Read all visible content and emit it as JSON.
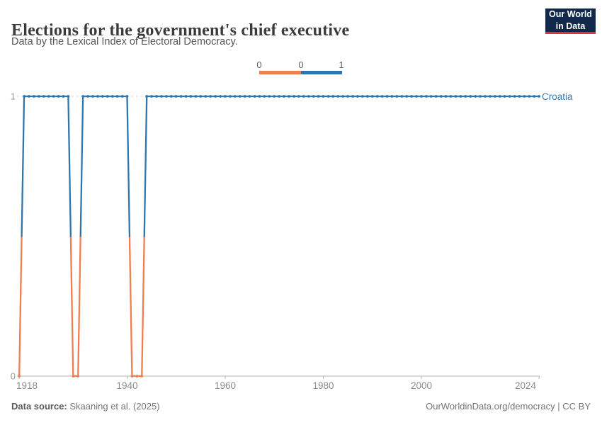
{
  "header": {
    "title": "Elections for the government's chief executive",
    "subtitle": "Data by the Lexical Index of Electoral Democracy.",
    "logo_line1": "Our World",
    "logo_line2": "in Data"
  },
  "legend": {
    "labels": [
      "0",
      "0",
      "1"
    ],
    "bins": [
      {
        "value": 0,
        "color": "#EF7E50"
      },
      {
        "value": 1,
        "color": "#3076AE"
      }
    ]
  },
  "chart_data": {
    "type": "line",
    "title": "Elections for the government's chief executive",
    "subtitle": "Data by the Lexical Index of Electoral Democracy.",
    "entity": "Croatia",
    "entity_color": "#3579B1",
    "xlabel": "",
    "ylabel": "",
    "xlim": [
      1918,
      2024
    ],
    "ylim": [
      0,
      1
    ],
    "x_ticks": [
      1918,
      1940,
      1960,
      1980,
      2000,
      2024
    ],
    "y_ticks": [
      0,
      1
    ],
    "grid": "dashed-line-at-1-only",
    "legend_position": "top-center",
    "series": [
      {
        "name": "Croatia",
        "x_start": 1918,
        "x_end": 2024,
        "values": [
          0,
          1,
          1,
          1,
          1,
          1,
          1,
          1,
          1,
          1,
          1,
          0,
          0,
          1,
          1,
          1,
          1,
          1,
          1,
          1,
          1,
          1,
          1,
          0,
          0,
          0,
          1,
          1,
          1,
          1,
          1,
          1,
          1,
          1,
          1,
          1,
          1,
          1,
          1,
          1,
          1,
          1,
          1,
          1,
          1,
          1,
          1,
          1,
          1,
          1,
          1,
          1,
          1,
          1,
          1,
          1,
          1,
          1,
          1,
          1,
          1,
          1,
          1,
          1,
          1,
          1,
          1,
          1,
          1,
          1,
          1,
          1,
          1,
          1,
          1,
          1,
          1,
          1,
          1,
          1,
          1,
          1,
          1,
          1,
          1,
          1,
          1,
          1,
          1,
          1,
          1,
          1,
          1,
          1,
          1,
          1,
          1,
          1,
          1,
          1,
          1,
          1,
          1,
          1,
          1,
          1,
          1
        ]
      }
    ],
    "value_colors": {
      "0": "#EF7E50",
      "1": "#3076AE"
    },
    "axis_color": "#B3B3B3",
    "gridline_color": "#D8D8D8",
    "tick_label_color": "#8B8B8B",
    "y_label_color": "#999999"
  },
  "footer": {
    "source_label": "Data source:",
    "source_value": "Skaaning et al. (2025)",
    "license": "OurWorldinData.org/democracy | CC BY"
  }
}
